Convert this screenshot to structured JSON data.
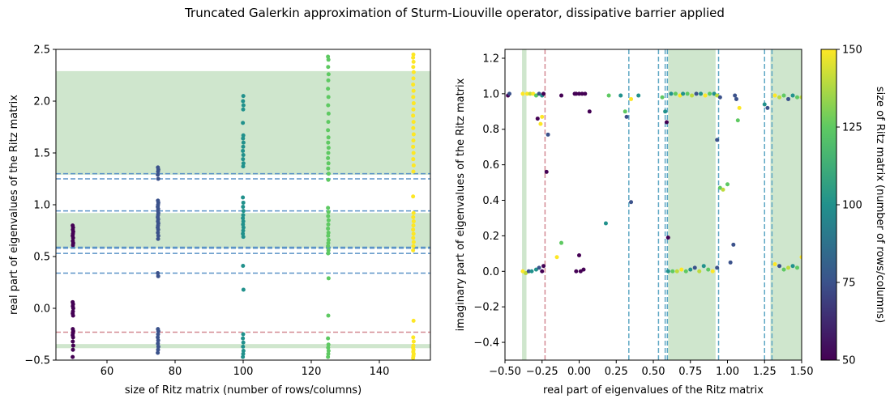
{
  "title": "Truncated Galerkin approximation of Sturm-Liouville operator, dissipative barrier applied",
  "colors": {
    "band": "#cfe6cd",
    "blue_dash": "#5b93c7",
    "red_dash": "#d38a94",
    "cyan_dash": "#5ea7c4",
    "viridis": [
      "#440154",
      "#3b528b",
      "#21918c",
      "#5ec962",
      "#fde725"
    ]
  },
  "chart_data": [
    {
      "type": "scatter",
      "xlabel": "size of Ritz matrix (number of rows/columns)",
      "ylabel": "real part of eigenvalues of the Ritz matrix",
      "xlim": [
        45,
        155
      ],
      "ylim": [
        -0.5,
        2.5
      ],
      "xticks": [
        60,
        80,
        100,
        120,
        140
      ],
      "yticks": [
        -0.5,
        0.0,
        0.5,
        1.0,
        1.5,
        2.0,
        2.5
      ],
      "grid": false,
      "shaded_bands_y": [
        [
          -0.385,
          -0.345
        ],
        [
          0.58,
          0.92
        ],
        [
          1.29,
          2.29
        ]
      ],
      "hlines": [
        {
          "y": -0.23,
          "color": "red"
        },
        {
          "y": 0.34,
          "color": "blue"
        },
        {
          "y": 0.53,
          "color": "blue"
        },
        {
          "y": 0.58,
          "color": "blue"
        },
        {
          "y": 0.59,
          "color": "blue"
        },
        {
          "y": 0.94,
          "color": "blue"
        },
        {
          "y": 1.25,
          "color": "blue"
        },
        {
          "y": 1.3,
          "color": "blue"
        }
      ],
      "series": [
        {
          "x": 50,
          "values": [
            -0.47,
            -0.4,
            -0.36,
            -0.32,
            -0.28,
            -0.26,
            -0.24,
            -0.22,
            -0.2,
            -0.07,
            -0.05,
            -0.03,
            0.0,
            0.02,
            0.04,
            0.06,
            0.61,
            0.63,
            0.65,
            0.68,
            0.7,
            0.72,
            0.74,
            0.76,
            0.78,
            0.8
          ]
        },
        {
          "x": 75,
          "values": [
            -0.43,
            -0.4,
            -0.37,
            -0.34,
            -0.31,
            -0.28,
            -0.25,
            -0.22,
            -0.2,
            0.31,
            0.34,
            0.67,
            0.7,
            0.73,
            0.76,
            0.78,
            0.8,
            0.82,
            0.84,
            0.86,
            0.88,
            0.9,
            0.92,
            0.94,
            0.96,
            0.98,
            1.0,
            1.02,
            1.04,
            1.25,
            1.29,
            1.32,
            1.34,
            1.36
          ]
        },
        {
          "x": 100,
          "values": [
            -0.47,
            -0.44,
            -0.41,
            -0.37,
            -0.33,
            -0.29,
            -0.25,
            0.18,
            0.41,
            0.69,
            0.72,
            0.75,
            0.78,
            0.81,
            0.84,
            0.87,
            0.9,
            0.94,
            0.98,
            1.02,
            1.07,
            1.37,
            1.4,
            1.44,
            1.48,
            1.52,
            1.56,
            1.6,
            1.64,
            1.67,
            1.79,
            1.92,
            1.96,
            2.0,
            2.05
          ]
        },
        {
          "x": 125,
          "values": [
            -0.47,
            -0.44,
            -0.41,
            -0.38,
            -0.35,
            -0.29,
            -0.07,
            0.29,
            0.53,
            0.56,
            0.6,
            0.63,
            0.66,
            0.7,
            0.73,
            0.77,
            0.81,
            0.85,
            0.89,
            0.93,
            0.97,
            1.24,
            1.3,
            1.35,
            1.4,
            1.45,
            1.5,
            1.55,
            1.6,
            1.65,
            1.72,
            1.8,
            1.88,
            1.96,
            2.04,
            2.12,
            2.2,
            2.26,
            2.33,
            2.4,
            2.43
          ]
        },
        {
          "x": 150,
          "values": [
            -0.48,
            -0.46,
            -0.44,
            -0.42,
            -0.4,
            -0.38,
            -0.36,
            -0.32,
            -0.28,
            -0.12,
            0.56,
            0.6,
            0.64,
            0.68,
            0.72,
            0.76,
            0.8,
            0.84,
            0.88,
            0.92,
            1.08,
            1.32,
            1.38,
            1.44,
            1.5,
            1.56,
            1.62,
            1.68,
            1.74,
            1.8,
            1.86,
            1.92,
            1.98,
            2.04,
            2.1,
            2.16,
            2.22,
            2.28,
            2.33,
            2.38,
            2.42,
            2.45
          ]
        }
      ]
    },
    {
      "type": "scatter",
      "xlabel": "real part of eigenvalues of the Ritz matrix",
      "ylabel": "imaginary part of eigenvalues of the Ritz matrix",
      "xlim": [
        -0.5,
        1.5
      ],
      "ylim": [
        -0.5,
        1.25
      ],
      "xticks": [
        -0.5,
        -0.25,
        0.0,
        0.25,
        0.5,
        0.75,
        1.0,
        1.25,
        1.5
      ],
      "yticks": [
        -0.4,
        -0.2,
        0.0,
        0.2,
        0.4,
        0.6,
        0.8,
        1.0,
        1.2
      ],
      "grid": false,
      "shaded_bands_x": [
        [
          -0.385,
          -0.355
        ],
        [
          0.6,
          0.92
        ],
        [
          1.29,
          1.5
        ]
      ],
      "vlines": [
        {
          "x": -0.23,
          "color": "red"
        },
        {
          "x": 0.335,
          "color": "cyan"
        },
        {
          "x": 0.535,
          "color": "cyan"
        },
        {
          "x": 0.58,
          "color": "cyan"
        },
        {
          "x": 0.595,
          "color": "cyan"
        },
        {
          "x": 0.94,
          "color": "cyan"
        },
        {
          "x": 1.25,
          "color": "cyan"
        },
        {
          "x": 1.3,
          "color": "cyan"
        }
      ],
      "points": [
        [
          -0.48,
          0.99,
          50
        ],
        [
          -0.47,
          1.0,
          75
        ],
        [
          -0.38,
          1.0,
          150
        ],
        [
          -0.35,
          1.0,
          150
        ],
        [
          -0.33,
          1.0,
          140
        ],
        [
          -0.31,
          1.0,
          150
        ],
        [
          -0.29,
          0.99,
          125
        ],
        [
          -0.27,
          1.0,
          75
        ],
        [
          -0.25,
          0.99,
          100
        ],
        [
          -0.24,
          1.0,
          50
        ],
        [
          -0.28,
          0.86,
          50
        ],
        [
          -0.26,
          0.83,
          150
        ],
        [
          -0.25,
          0.87,
          150
        ],
        [
          -0.21,
          0.77,
          75
        ],
        [
          -0.22,
          0.56,
          50
        ],
        [
          -0.38,
          0.0,
          150
        ],
        [
          -0.36,
          -0.01,
          140
        ],
        [
          -0.34,
          0.0,
          75
        ],
        [
          -0.32,
          0.0,
          100
        ],
        [
          -0.29,
          0.01,
          100
        ],
        [
          -0.27,
          0.02,
          75
        ],
        [
          -0.25,
          0.0,
          50
        ],
        [
          -0.24,
          0.03,
          50
        ],
        [
          -0.12,
          0.99,
          50
        ],
        [
          -0.03,
          1.0,
          50
        ],
        [
          -0.02,
          1.0,
          50
        ],
        [
          0.0,
          1.0,
          50
        ],
        [
          0.02,
          1.0,
          50
        ],
        [
          0.04,
          1.0,
          50
        ],
        [
          0.07,
          0.9,
          50
        ],
        [
          0.0,
          0.09,
          50
        ],
        [
          -0.02,
          0.0,
          50
        ],
        [
          0.01,
          0.0,
          50
        ],
        [
          0.03,
          0.01,
          50
        ],
        [
          -0.12,
          0.16,
          125
        ],
        [
          -0.15,
          0.08,
          150
        ],
        [
          0.18,
          0.27,
          100
        ],
        [
          0.2,
          0.99,
          125
        ],
        [
          0.28,
          0.99,
          100
        ],
        [
          0.31,
          0.9,
          125
        ],
        [
          0.32,
          0.87,
          75
        ],
        [
          0.35,
          0.97,
          150
        ],
        [
          0.35,
          0.39,
          75
        ],
        [
          0.4,
          0.99,
          100
        ],
        [
          0.56,
          0.98,
          125
        ],
        [
          0.59,
          0.84,
          50
        ],
        [
          0.58,
          0.9,
          100
        ],
        [
          0.6,
          0.19,
          50
        ],
        [
          0.62,
          1.0,
          100
        ],
        [
          0.65,
          1.0,
          125
        ],
        [
          0.68,
          0.99,
          150
        ],
        [
          0.7,
          1.0,
          100
        ],
        [
          0.73,
          1.0,
          125
        ],
        [
          0.76,
          0.99,
          140
        ],
        [
          0.79,
          1.0,
          75
        ],
        [
          0.82,
          1.0,
          100
        ],
        [
          0.85,
          0.99,
          150
        ],
        [
          0.88,
          1.0,
          125
        ],
        [
          0.91,
          1.0,
          100
        ],
        [
          0.93,
          0.99,
          140
        ],
        [
          0.95,
          0.98,
          75
        ],
        [
          0.6,
          0.0,
          100
        ],
        [
          0.63,
          0.0,
          125
        ],
        [
          0.66,
          0.0,
          140
        ],
        [
          0.69,
          0.01,
          150
        ],
        [
          0.72,
          0.0,
          125
        ],
        [
          0.75,
          0.01,
          100
        ],
        [
          0.78,
          0.02,
          75
        ],
        [
          0.81,
          0.0,
          140
        ],
        [
          0.84,
          0.03,
          100
        ],
        [
          0.87,
          0.01,
          125
        ],
        [
          0.9,
          0.0,
          150
        ],
        [
          0.93,
          0.02,
          75
        ],
        [
          0.93,
          0.74,
          75
        ],
        [
          0.95,
          0.47,
          125
        ],
        [
          0.97,
          0.46,
          140
        ],
        [
          1.0,
          0.49,
          125
        ],
        [
          1.02,
          0.05,
          75
        ],
        [
          1.04,
          0.15,
          75
        ],
        [
          1.05,
          0.99,
          75
        ],
        [
          1.07,
          0.85,
          125
        ],
        [
          1.08,
          0.92,
          150
        ],
        [
          1.06,
          0.97,
          75
        ],
        [
          1.25,
          0.94,
          100
        ],
        [
          1.27,
          0.92,
          75
        ],
        [
          1.32,
          0.99,
          150
        ],
        [
          1.35,
          0.98,
          140
        ],
        [
          1.38,
          0.99,
          125
        ],
        [
          1.41,
          0.97,
          75
        ],
        [
          1.44,
          0.99,
          100
        ],
        [
          1.47,
          0.98,
          125
        ],
        [
          1.5,
          0.98,
          140
        ],
        [
          1.32,
          0.04,
          150
        ],
        [
          1.35,
          0.03,
          75
        ],
        [
          1.38,
          0.01,
          125
        ],
        [
          1.41,
          0.02,
          140
        ],
        [
          1.44,
          0.03,
          100
        ],
        [
          1.47,
          0.02,
          125
        ],
        [
          1.5,
          0.08,
          150
        ]
      ]
    }
  ],
  "colorbar": {
    "label": "size of Ritz matrix (number of rows/columns)",
    "min": 50,
    "max": 150,
    "ticks": [
      50,
      75,
      100,
      125,
      150
    ]
  }
}
